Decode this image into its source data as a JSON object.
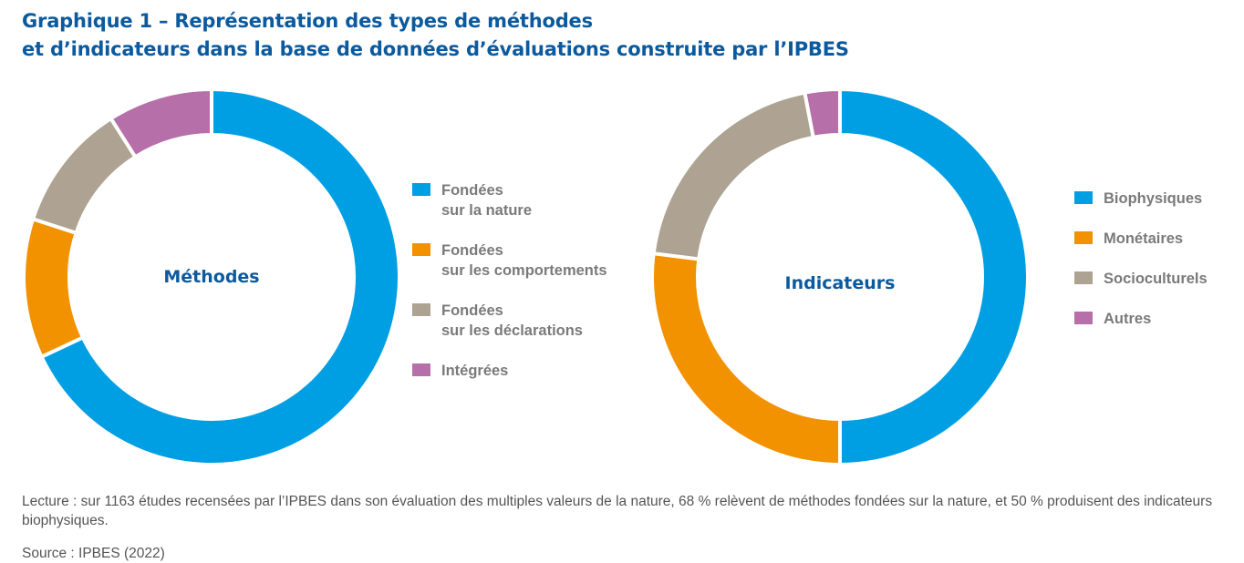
{
  "title": {
    "line1": "Graphique 1 – Représentation des types de méthodes",
    "line2": "et d’indicateurs dans la base de données d’évaluations construite par l’IPBES"
  },
  "chart_data": [
    {
      "type": "pie",
      "variant": "donut",
      "center_label": "Méthodes",
      "categories": [
        "Fondées sur la nature",
        "Fondées sur les comportements",
        "Fondées sur les déclarations",
        "Intégrées"
      ],
      "legend_lines": [
        [
          "Fondées",
          "sur la nature"
        ],
        [
          "Fondées",
          "sur les comportements"
        ],
        [
          "Fondées",
          "sur les déclarations"
        ],
        [
          "Intégrées"
        ]
      ],
      "values": [
        68,
        12,
        11,
        9
      ],
      "colors": [
        "#009fe3",
        "#f29200",
        "#aea393",
        "#b66fa9"
      ],
      "legend_placement": "right"
    },
    {
      "type": "pie",
      "variant": "donut",
      "center_label": "Indicateurs",
      "categories": [
        "Biophysiques",
        "Monétaires",
        "Socioculturels",
        "Autres"
      ],
      "legend_lines": [
        [
          "Biophysiques"
        ],
        [
          "Monétaires"
        ],
        [
          "Socioculturels"
        ],
        [
          "Autres"
        ]
      ],
      "values": [
        50,
        27,
        20,
        3
      ],
      "colors": [
        "#009fe3",
        "#f29200",
        "#aea393",
        "#b66fa9"
      ],
      "legend_placement": "right"
    }
  ],
  "note": "Lecture : sur 1163 études recensées par l’IPBES dans son évaluation des multiples valeurs de la nature, 68 % relèvent de méthodes fondées sur la nature, et 50 % produisent des indicateurs biophysiques.",
  "source": "Source : IPBES (2022)"
}
